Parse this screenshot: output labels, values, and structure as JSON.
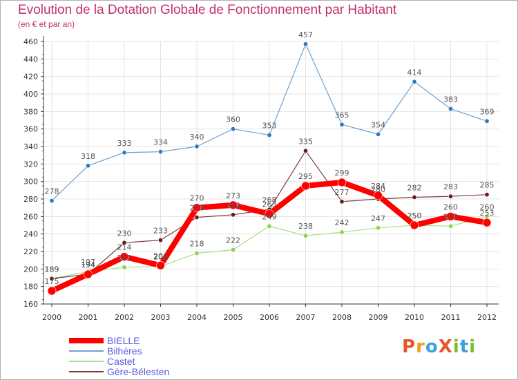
{
  "title": "Evolution de la Dotation Globale de Fonctionnement par Habitant",
  "subtitle": "(en € et par an)",
  "logo_text": "ProXiti",
  "colors": {
    "title": "#c2306e",
    "grid": "#e3e3e3",
    "axis": "#333333",
    "legend_text": "#5a5ae0"
  },
  "chart_data": {
    "type": "line",
    "x": [
      "2000",
      "2001",
      "2002",
      "2003",
      "2004",
      "2005",
      "2006",
      "2007",
      "2008",
      "2009",
      "2010",
      "2011",
      "2012"
    ],
    "ylim": [
      160,
      460
    ],
    "yticks": [
      160,
      180,
      200,
      220,
      240,
      260,
      280,
      300,
      320,
      340,
      360,
      380,
      400,
      420,
      440,
      460
    ],
    "grid": true,
    "legend": "bottom-left",
    "series": [
      {
        "name": "Bilhères",
        "color": "#6aa0d0",
        "marker": "#2f78bf",
        "width": 1.2,
        "radius": 3.2,
        "values": [
          278,
          318,
          333,
          334,
          340,
          360,
          353,
          457,
          365,
          354,
          414,
          383,
          369
        ]
      },
      {
        "name": "Castet",
        "color": "#a8e08a",
        "marker": "#88d34f",
        "width": 1.2,
        "radius": 3.2,
        "values": [
          189,
          197,
          202,
          203,
          218,
          222,
          249,
          238,
          242,
          247,
          250,
          249,
          260
        ]
      },
      {
        "name": "Gère-Bélesten",
        "color": "#7a3a3a",
        "marker": "#6b1d1d",
        "width": 1.2,
        "radius": 3.2,
        "values": [
          189,
          194,
          230,
          233,
          259,
          262,
          268,
          335,
          277,
          280,
          282,
          283,
          285
        ]
      },
      {
        "name": "BIELLE",
        "color": "#ff0000",
        "marker": "#ff0000",
        "width": 8,
        "radius": 6,
        "values": [
          175,
          194,
          214,
          204,
          270,
          273,
          263,
          295,
          299,
          284,
          250,
          260,
          253
        ]
      }
    ],
    "legend_order": [
      "BIELLE",
      "Bilhères",
      "Castet",
      "Gère-Bélesten"
    ]
  }
}
